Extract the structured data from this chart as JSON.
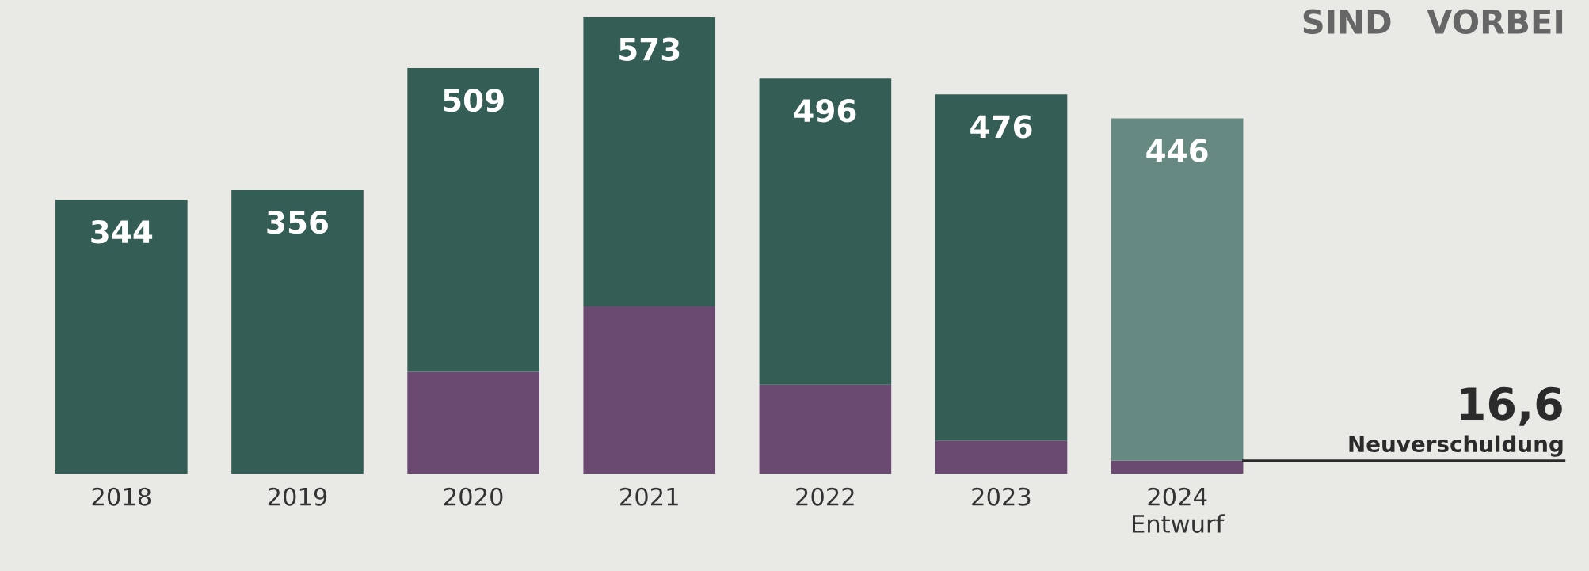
{
  "chart_data": {
    "type": "bar",
    "title": "SIND   VORBEI",
    "stacked": true,
    "categories": [
      "2018",
      "2019",
      "2020",
      "2021",
      "2022",
      "2023",
      "2024\nEntwurf"
    ],
    "series": [
      {
        "name": "Neuverschuldung",
        "color": "#6a4a70",
        "values": [
          0,
          0,
          128,
          210,
          112,
          42,
          16.6
        ],
        "value_labels": [
          null,
          null,
          null,
          null,
          null,
          null,
          "16,6"
        ]
      },
      {
        "colors": [
          "#345e55",
          "#345e55",
          "#345e55",
          "#345e55",
          "#345e55",
          "#345e55",
          "#668a82"
        ],
        "values": [
          344,
          356,
          381,
          363,
          384,
          434,
          429.4
        ]
      }
    ],
    "totals": [
      "344",
      "356",
      "509",
      "573",
      "496",
      "476",
      "446"
    ],
    "grid": false,
    "legend": false
  }
}
